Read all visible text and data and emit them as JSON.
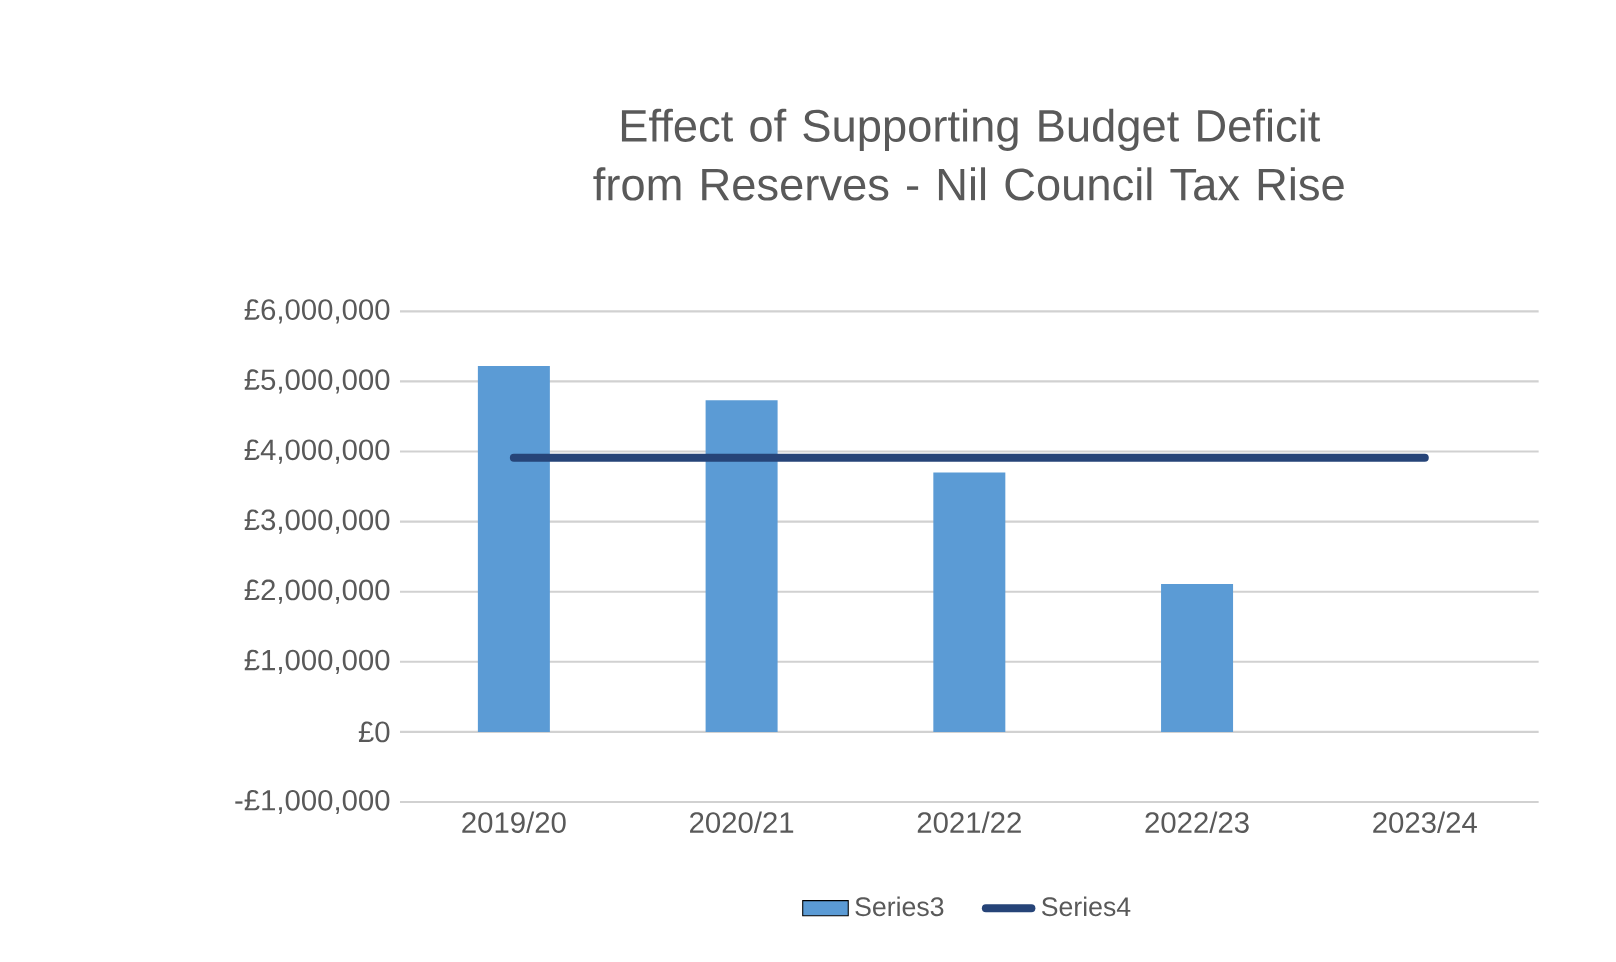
{
  "chart_data": {
    "type": "bar",
    "title": "Effect of Supporting Budget Deficit from Reserves - Nil Council Tax Rise",
    "categories": [
      "2019/20",
      "2020/21",
      "2021/22",
      "2022/23",
      "2023/24"
    ],
    "series": [
      {
        "name": "Series3",
        "color": "#5b9bd5",
        "values": [
          5220000,
          4730000,
          3700000,
          2110000,
          0
        ]
      },
      {
        "name": "Series4",
        "type": "line",
        "color": "#264478",
        "values": [
          3910000,
          3910000,
          3910000,
          3910000,
          3910000
        ]
      }
    ],
    "ylim": [
      -1000000,
      6000000
    ],
    "yticks": [
      {
        "value": -1000000,
        "label": "-£1,000,000"
      },
      {
        "value": 0,
        "label": "£0"
      },
      {
        "value": 1000000,
        "label": "£1,000,000"
      },
      {
        "value": 2000000,
        "label": "£2,000,000"
      },
      {
        "value": 3000000,
        "label": "£3,000,000"
      },
      {
        "value": 4000000,
        "label": "£4,000,000"
      },
      {
        "value": 5000000,
        "label": "£5,000,000"
      },
      {
        "value": 6000000,
        "label": "£6,000,000"
      }
    ],
    "grid": "y",
    "legend": "bottom"
  }
}
